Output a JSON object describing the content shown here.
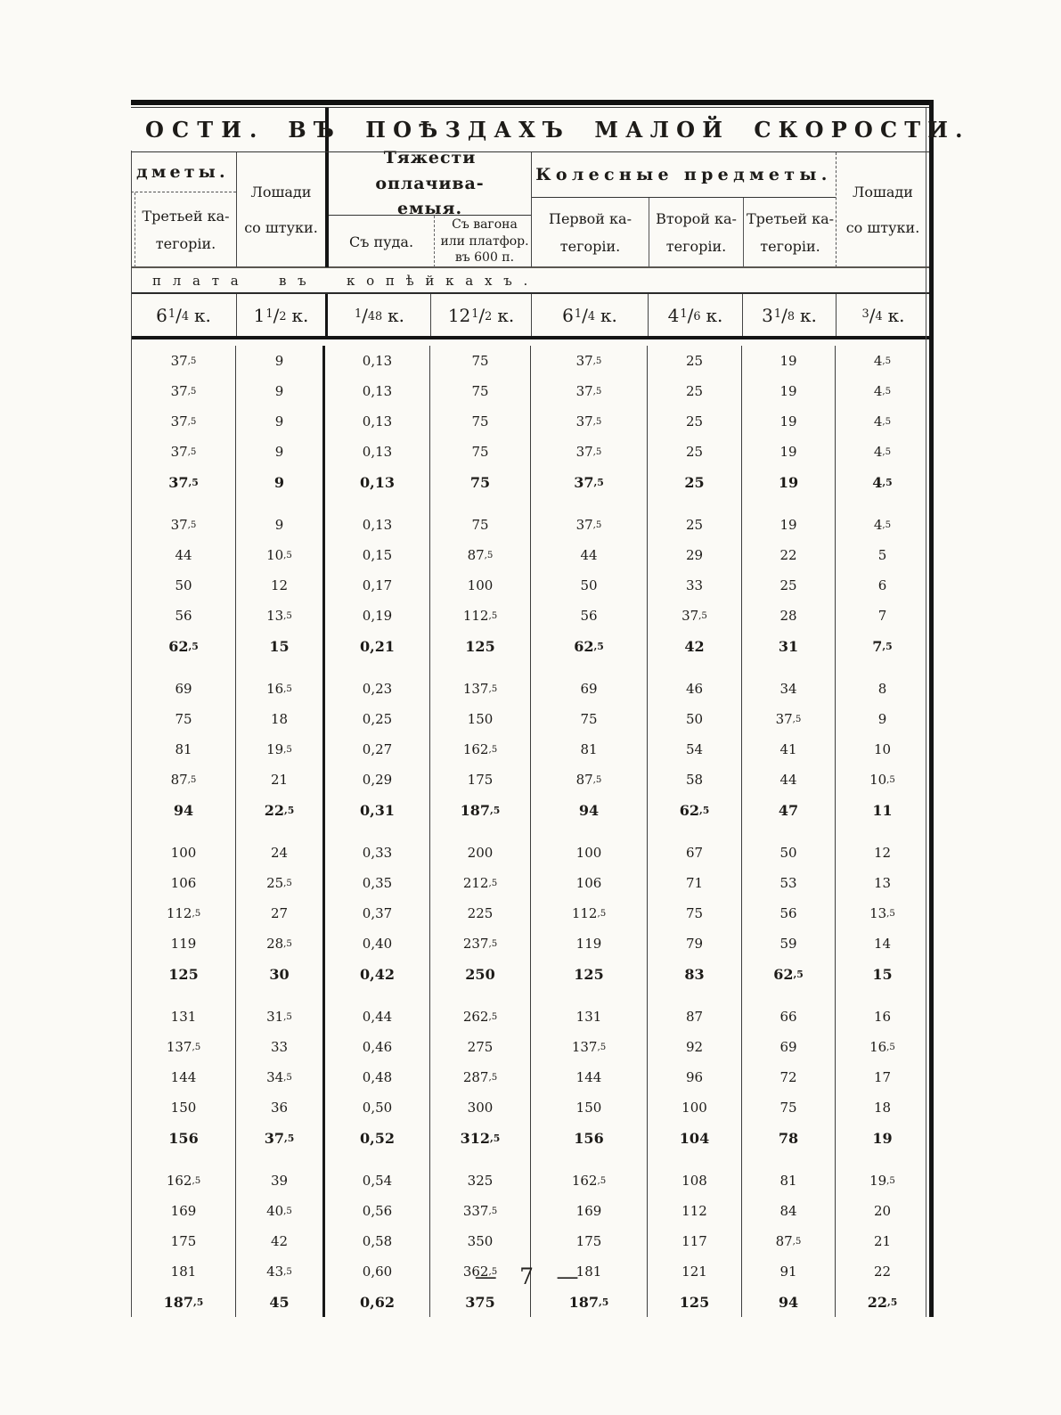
{
  "header": {
    "left_top": "ОСТИ.",
    "right_top": "ВЪ ПОѢЗДАХЪ МАЛОЙ СКОРОСТИ.",
    "left_group": "дметы.",
    "col1": [
      "Третьей ка-",
      "тегоріи."
    ],
    "col2": [
      "Лошади",
      "со штуки."
    ],
    "weights_group": [
      "Тяжести оплачива-",
      "емыя."
    ],
    "col3": "Съ пуда.",
    "col4": [
      "Съ вагона",
      "или платфор.",
      "въ 600 п."
    ],
    "wheels_group": "Колесные предметы.",
    "col5": [
      "Первой ка-",
      "тегоріи."
    ],
    "col6": [
      "Второй ка-",
      "тегоріи."
    ],
    "col7": [
      "Третьей ка-",
      "тегоріи."
    ],
    "col8": [
      "Лошади",
      "со штуки."
    ],
    "plata": "плата въ копѣйкахъ."
  },
  "rates": [
    {
      "whole": "6",
      "frac": "1/4",
      "unit": "к."
    },
    {
      "whole": "1",
      "frac": "1/2",
      "unit": "к."
    },
    {
      "whole": "",
      "frac": "1/48",
      "unit": "к."
    },
    {
      "whole": "12",
      "frac": "1/2",
      "unit": "к."
    },
    {
      "whole": "6",
      "frac": "1/4",
      "unit": "к."
    },
    {
      "whole": "4",
      "frac": "1/6",
      "unit": "к."
    },
    {
      "whole": "3",
      "frac": "1/8",
      "unit": "к."
    },
    {
      "whole": "",
      "frac": "3/4",
      "unit": "к."
    }
  ],
  "table": {
    "groups": [
      [
        [
          "37,5",
          "9",
          "0,13",
          "75",
          "37,5",
          "25",
          "19",
          "4,5"
        ],
        [
          "37,5",
          "9",
          "0,13",
          "75",
          "37,5",
          "25",
          "19",
          "4,5"
        ],
        [
          "37,5",
          "9",
          "0,13",
          "75",
          "37,5",
          "25",
          "19",
          "4,5"
        ],
        [
          "37,5",
          "9",
          "0,13",
          "75",
          "37,5",
          "25",
          "19",
          "4,5"
        ],
        [
          "37,5",
          "9",
          "0,13",
          "75",
          "37,5",
          "25",
          "19",
          "4,5"
        ]
      ],
      [
        [
          "37,5",
          "9",
          "0,13",
          "75",
          "37,5",
          "25",
          "19",
          "4,5"
        ],
        [
          "44",
          "10,5",
          "0,15",
          "87,5",
          "44",
          "29",
          "22",
          "5"
        ],
        [
          "50",
          "12",
          "0,17",
          "100",
          "50",
          "33",
          "25",
          "6"
        ],
        [
          "56",
          "13,5",
          "0,19",
          "112,5",
          "56",
          "37,5",
          "28",
          "7"
        ],
        [
          "62,5",
          "15",
          "0,21",
          "125",
          "62,5",
          "42",
          "31",
          "7,5"
        ]
      ],
      [
        [
          "69",
          "16,5",
          "0,23",
          "137,5",
          "69",
          "46",
          "34",
          "8"
        ],
        [
          "75",
          "18",
          "0,25",
          "150",
          "75",
          "50",
          "37,5",
          "9"
        ],
        [
          "81",
          "19,5",
          "0,27",
          "162,5",
          "81",
          "54",
          "41",
          "10"
        ],
        [
          "87,5",
          "21",
          "0,29",
          "175",
          "87,5",
          "58",
          "44",
          "10,5"
        ],
        [
          "94",
          "22,5",
          "0,31",
          "187,5",
          "94",
          "62,5",
          "47",
          "11"
        ]
      ],
      [
        [
          "100",
          "24",
          "0,33",
          "200",
          "100",
          "67",
          "50",
          "12"
        ],
        [
          "106",
          "25,5",
          "0,35",
          "212,5",
          "106",
          "71",
          "53",
          "13"
        ],
        [
          "112,5",
          "27",
          "0,37",
          "225",
          "112,5",
          "75",
          "56",
          "13,5"
        ],
        [
          "119",
          "28,5",
          "0,40",
          "237,5",
          "119",
          "79",
          "59",
          "14"
        ],
        [
          "125",
          "30",
          "0,42",
          "250",
          "125",
          "83",
          "62,5",
          "15"
        ]
      ],
      [
        [
          "131",
          "31,5",
          "0,44",
          "262,5",
          "131",
          "87",
          "66",
          "16"
        ],
        [
          "137,5",
          "33",
          "0,46",
          "275",
          "137,5",
          "92",
          "69",
          "16,5"
        ],
        [
          "144",
          "34,5",
          "0,48",
          "287,5",
          "144",
          "96",
          "72",
          "17"
        ],
        [
          "150",
          "36",
          "0,50",
          "300",
          "150",
          "100",
          "75",
          "18"
        ],
        [
          "156",
          "37,5",
          "0,52",
          "312,5",
          "156",
          "104",
          "78",
          "19"
        ]
      ],
      [
        [
          "162,5",
          "39",
          "0,54",
          "325",
          "162,5",
          "108",
          "81",
          "19,5"
        ],
        [
          "169",
          "40,5",
          "0,56",
          "337,5",
          "169",
          "112",
          "84",
          "20"
        ],
        [
          "175",
          "42",
          "0,58",
          "350",
          "175",
          "117",
          "87,5",
          "21"
        ],
        [
          "181",
          "43,5",
          "0,60",
          "362,5",
          "181",
          "121",
          "91",
          "22"
        ],
        [
          "187,5",
          "45",
          "0,62",
          "375",
          "187,5",
          "125",
          "94",
          "22,5"
        ]
      ]
    ]
  },
  "footer": {
    "page_number": "— 7 —"
  }
}
